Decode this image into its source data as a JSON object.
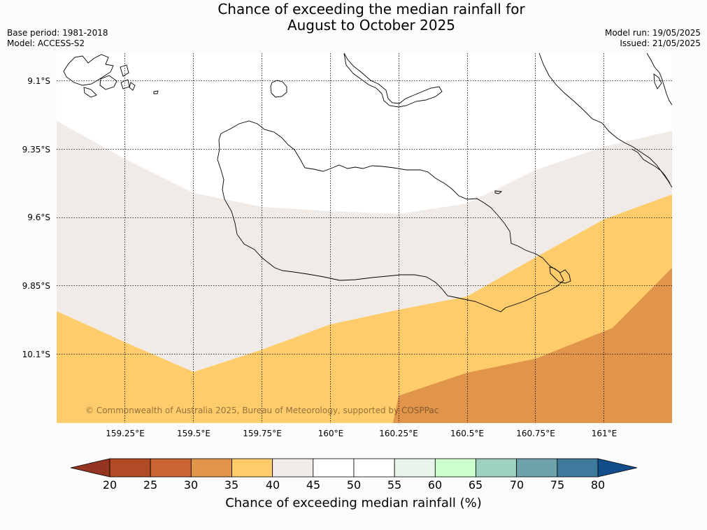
{
  "header": {
    "title_line1": "Chance of exceeding the median rainfall for",
    "title_line2": "August to October 2025",
    "base_period": "Base period: 1981-2018",
    "model": "Model: ACCESS-S2",
    "model_run": "Model run: 19/05/2025",
    "issued": "Issued: 21/05/2025"
  },
  "map": {
    "lat_labels": [
      "9.1°S",
      "9.35°S",
      "9.6°S",
      "9.85°S",
      "10.1°S"
    ],
    "lon_labels": [
      "159.25°E",
      "159.5°E",
      "159.75°E",
      "160°E",
      "160.25°E",
      "160.5°E",
      "160.75°E",
      "161°E"
    ],
    "copyright": "© Commonwealth of Australia 2025, Bureau of Meteorology, supported by COSPPac",
    "category_colors": {
      "30-35": "#e0954a",
      "35-40": "#fecc6b",
      "40-45": "#f0ebe6",
      "45-55": "#ffffff"
    }
  },
  "colorbar": {
    "title": "Chance of exceeding median rainfall (%)",
    "ticks": [
      "20",
      "25",
      "30",
      "35",
      "40",
      "45",
      "50",
      "55",
      "60",
      "65",
      "70",
      "75",
      "80"
    ],
    "colors": [
      "#b14a25",
      "#cc6433",
      "#e0954a",
      "#fecc6b",
      "#f0ebe6",
      "#ffffff",
      "#ffffff",
      "#e9f5ea",
      "#cbffcb",
      "#9dd1bd",
      "#6ea3a9",
      "#3f7a9c"
    ],
    "under_color": "#943421",
    "over_color": "#124c8a"
  }
}
